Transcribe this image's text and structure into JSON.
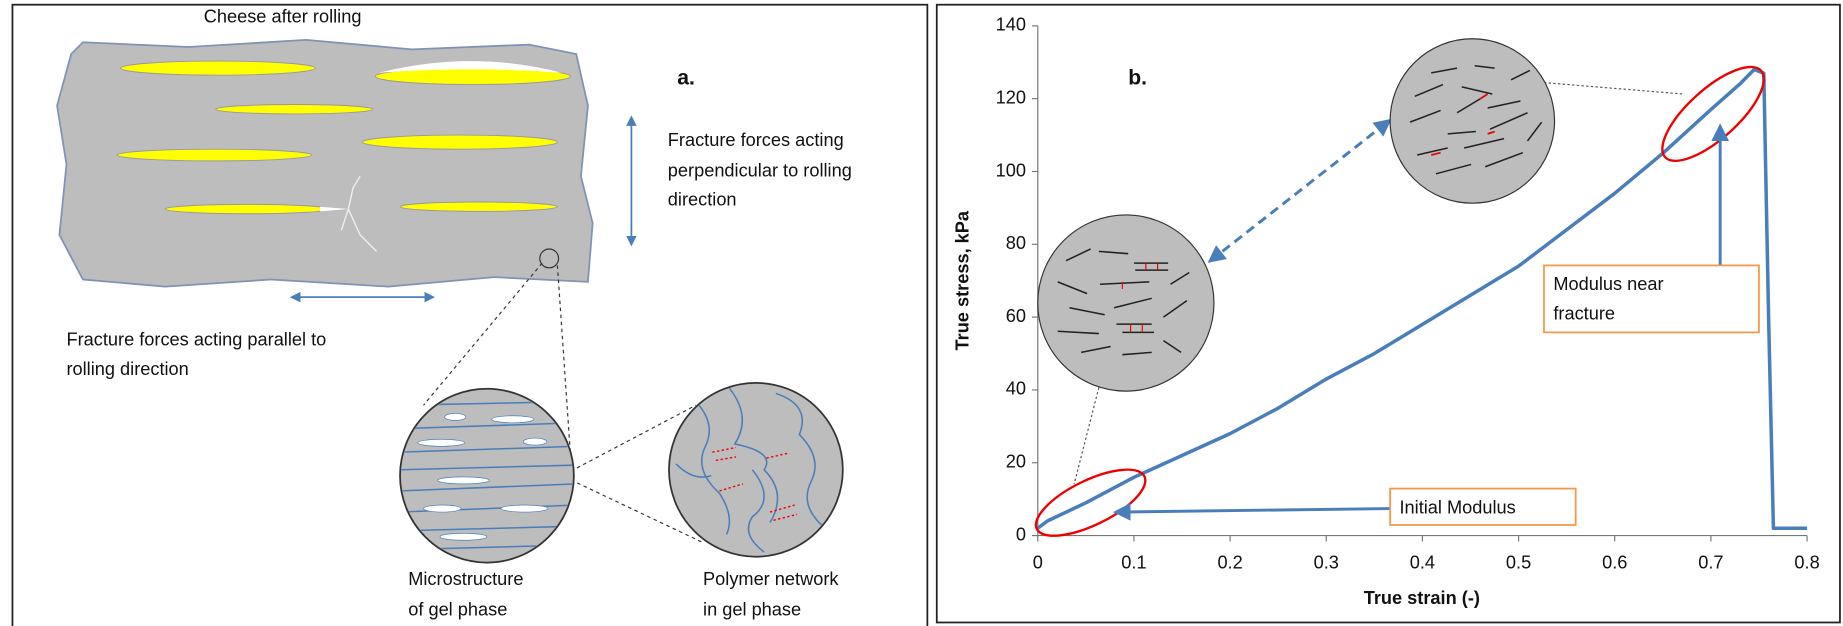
{
  "diagram": {
    "title": "Cheese after rolling",
    "panel_label": "a.",
    "perpendicular_note": [
      "Fracture forces acting",
      "perpendicular  to rolling",
      "direction"
    ],
    "parallel_note": [
      "Fracture forces acting parallel to",
      "rolling direction"
    ],
    "microstructure_label": [
      "Microstructure",
      "of gel phase"
    ],
    "polymer_label": [
      "Polymer network",
      "in gel phase"
    ]
  },
  "chart_data": {
    "type": "line",
    "panel_label": "b.",
    "x_label": "True strain (-)",
    "y_label": "True stress, kPa",
    "x": [
      0,
      0.01,
      0.05,
      0.1,
      0.15,
      0.2,
      0.25,
      0.3,
      0.35,
      0.4,
      0.45,
      0.5,
      0.55,
      0.6,
      0.65,
      0.7,
      0.73,
      0.745,
      0.755,
      0.76,
      0.765,
      0.8
    ],
    "values": [
      2,
      4,
      9,
      16,
      22,
      28,
      35,
      43,
      50,
      58,
      66,
      74,
      84,
      94,
      105,
      117,
      124,
      128,
      127,
      60,
      2,
      2
    ],
    "color": "#4a7ebb",
    "xlim": [
      0,
      0.8
    ],
    "xticks": [
      0,
      0.1,
      0.2,
      0.3,
      0.4,
      0.5,
      0.6,
      0.7,
      0.8
    ],
    "ylim": [
      0,
      140
    ],
    "yticks": [
      0,
      20,
      40,
      60,
      80,
      100,
      120,
      140
    ],
    "grid": false,
    "annotations": {
      "initial": "Initial Modulus",
      "near_fracture": [
        "Modulus near",
        "fracture"
      ]
    }
  }
}
